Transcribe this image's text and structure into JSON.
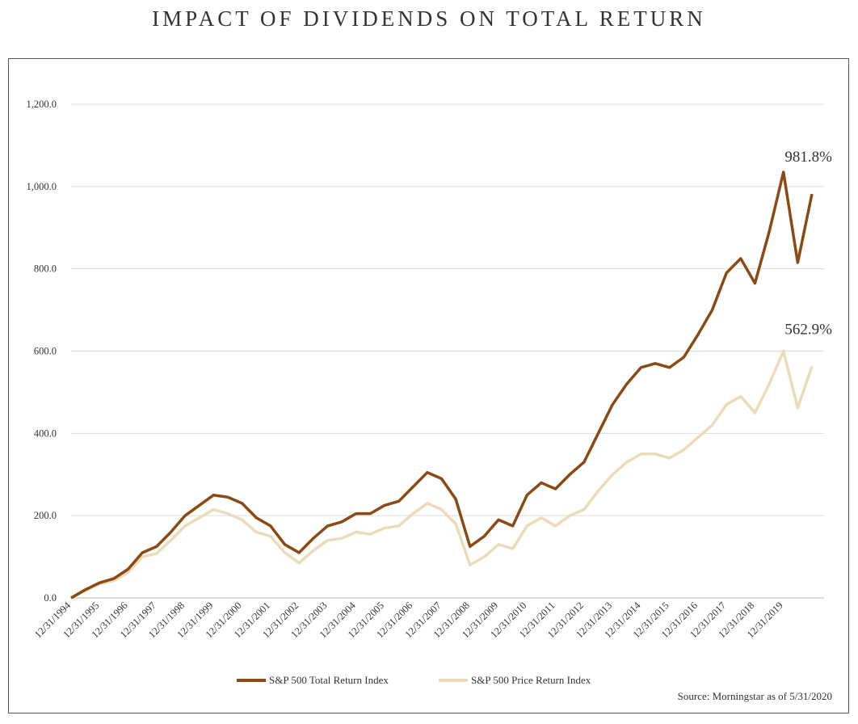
{
  "chart_data": {
    "type": "line",
    "title": "IMPACT OF DIVIDENDS ON TOTAL RETURN",
    "source": "Source: Morningstar as of 5/31/2020",
    "categories": [
      "12/31/1994",
      null,
      "12/31/1995",
      null,
      "12/31/1996",
      null,
      "12/31/1997",
      null,
      "12/31/1998",
      null,
      "12/31/1999",
      null,
      "12/31/2000",
      null,
      "12/31/2001",
      null,
      "12/31/2002",
      null,
      "12/31/2003",
      null,
      "12/31/2004",
      null,
      "12/31/2005",
      null,
      "12/31/2006",
      null,
      "12/31/2007",
      null,
      "12/31/2008",
      null,
      "12/31/2009",
      null,
      "12/31/2010",
      null,
      "12/31/2011",
      null,
      "12/31/2012",
      null,
      "12/31/2013",
      null,
      "12/31/2014",
      null,
      "12/31/2015",
      null,
      "12/31/2016",
      null,
      "12/31/2017",
      null,
      "12/31/2018",
      null,
      "12/31/2019",
      null,
      null
    ],
    "series": [
      {
        "name": "S&P 500 Total Return Index",
        "color": "#8b4a14",
        "end_label": "981.8%",
        "values": [
          0,
          20,
          37,
          47,
          70,
          110,
          125,
          160,
          200,
          225,
          250,
          245,
          230,
          195,
          175,
          130,
          110,
          145,
          175,
          185,
          205,
          205,
          225,
          235,
          270,
          305,
          290,
          240,
          125,
          150,
          190,
          175,
          250,
          280,
          265,
          300,
          330,
          400,
          470,
          520,
          560,
          570,
          560,
          585,
          640,
          700,
          790,
          825,
          765,
          890,
          1035,
          815,
          981.8
        ]
      },
      {
        "name": "S&P 500 Price Return Index",
        "color": "#eadcb8",
        "end_label": "562.9%",
        "values": [
          0,
          18,
          34,
          42,
          62,
          100,
          108,
          140,
          175,
          195,
          215,
          205,
          190,
          160,
          150,
          110,
          85,
          115,
          140,
          145,
          160,
          155,
          170,
          175,
          205,
          230,
          215,
          180,
          80,
          100,
          130,
          120,
          175,
          195,
          175,
          200,
          215,
          260,
          300,
          330,
          350,
          350,
          340,
          360,
          390,
          420,
          470,
          490,
          450,
          520,
          600,
          462,
          562.9
        ]
      }
    ],
    "ylim": [
      0,
      1200
    ],
    "yticks": [
      {
        "value": 0,
        "label": "0.0"
      },
      {
        "value": 200,
        "label": "200.0"
      },
      {
        "value": 400,
        "label": "400.0"
      },
      {
        "value": 600,
        "label": "600.0"
      },
      {
        "value": 800,
        "label": "800.0"
      },
      {
        "value": 1000,
        "label": "1,000.0"
      },
      {
        "value": 1200,
        "label": "1,200.0"
      }
    ],
    "grid": true,
    "legend": "bottom"
  }
}
